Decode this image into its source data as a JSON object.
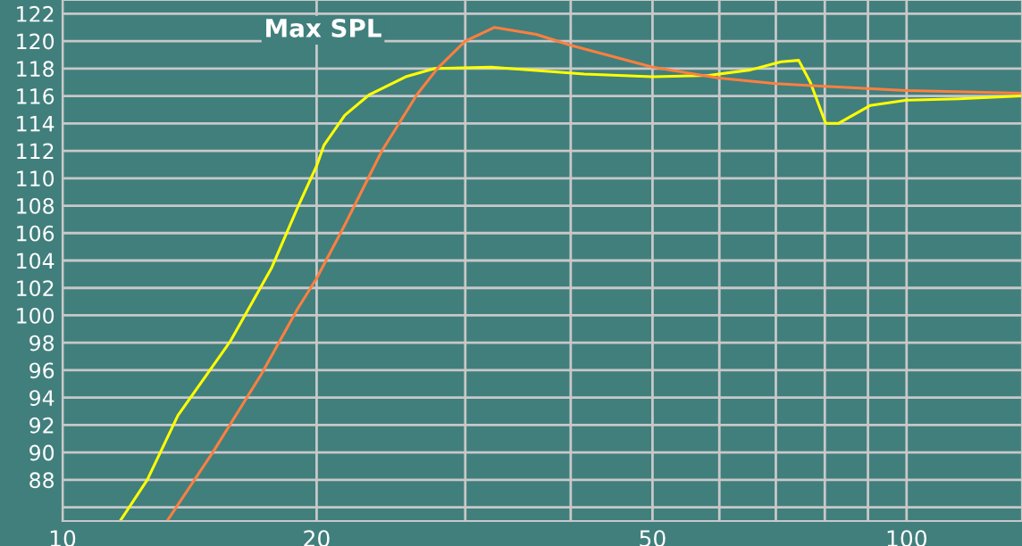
{
  "chart_data": {
    "type": "line",
    "title": "Max SPL",
    "log": "x",
    "grid": true,
    "line_style": "solid",
    "xlim": [
      10,
      137
    ],
    "ylim": [
      85,
      123
    ],
    "xticks": [
      10,
      20,
      {
        "value": 30,
        "label": null
      },
      {
        "value": 40,
        "label": null
      },
      50,
      {
        "value": 60,
        "label": null
      },
      {
        "value": 70,
        "label": null
      },
      {
        "value": 80,
        "label": null
      },
      {
        "value": 90,
        "label": null
      },
      100
    ],
    "yticks": [
      {
        "value": 86,
        "label": null
      },
      88,
      90,
      92,
      94,
      96,
      98,
      100,
      102,
      104,
      106,
      108,
      110,
      112,
      114,
      116,
      118,
      120,
      122
    ],
    "series": [
      {
        "color": "#ffff00",
        "x": [
          11.7,
          12.6,
          13.7,
          15.8,
          17.7,
          19.0,
          20.0,
          20.4,
          21.6,
          23.1,
          25.5,
          27.6,
          32.2,
          41.5,
          50,
          58.3,
          65.3,
          71,
          74.5,
          76.9,
          80.2,
          83,
          90.5,
          100,
          115.5,
          137
        ],
        "values": [
          85,
          88,
          92.7,
          98.1,
          103.5,
          107.9,
          110.9,
          112.4,
          114.6,
          116.1,
          117.4,
          118,
          118.1,
          117.6,
          117.4,
          117.5,
          117.9,
          118.5,
          118.6,
          117.0,
          114.0,
          114.0,
          115.3,
          115.7,
          115.8,
          116.0
        ]
      },
      {
        "color": "#ff7f3f",
        "x": [
          13.3,
          15.1,
          17.2,
          19.0,
          20.0,
          21.6,
          23.9,
          26.3,
          27.8,
          30,
          32.5,
          36.4,
          40,
          50,
          60,
          70,
          80,
          100,
          137
        ],
        "values": [
          85,
          90.1,
          95.7,
          100.5,
          102.7,
          106.6,
          112.0,
          116.1,
          118,
          120.0,
          121.0,
          120.5,
          119.7,
          118.1,
          117.3,
          116.9,
          116.7,
          116.4,
          116.2
        ]
      }
    ]
  }
}
